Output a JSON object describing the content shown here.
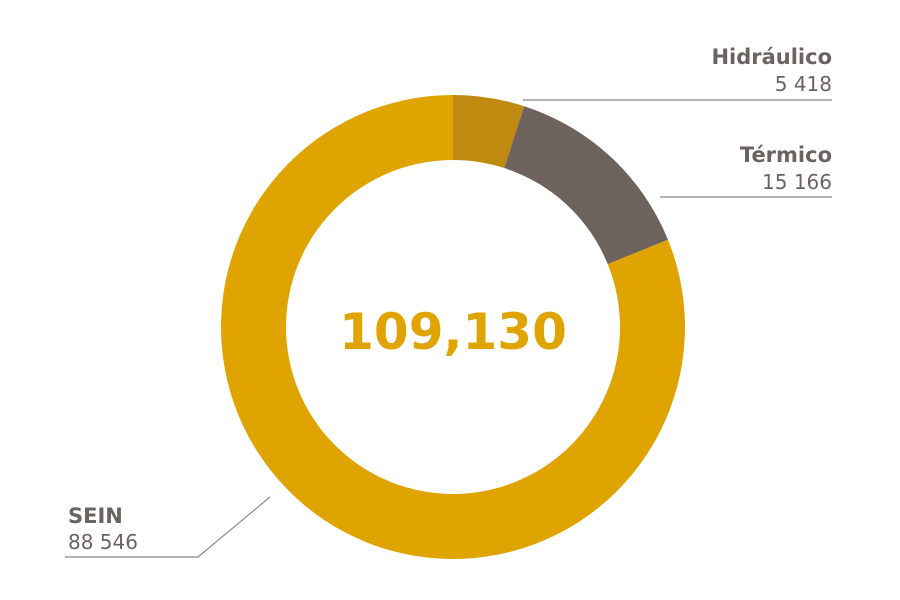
{
  "chart_data": {
    "type": "pie",
    "donut": true,
    "total_label": "109,130",
    "slices": [
      {
        "name": "Hidráulico",
        "value": 5418,
        "value_label": "5 418",
        "color": "#c08a10"
      },
      {
        "name": "Térmico",
        "value": 15166,
        "value_label": "15 166",
        "color": "#6e625c"
      },
      {
        "name": "SEIN",
        "value": 88546,
        "value_label": "88 546",
        "color": "#e0a400"
      }
    ]
  }
}
